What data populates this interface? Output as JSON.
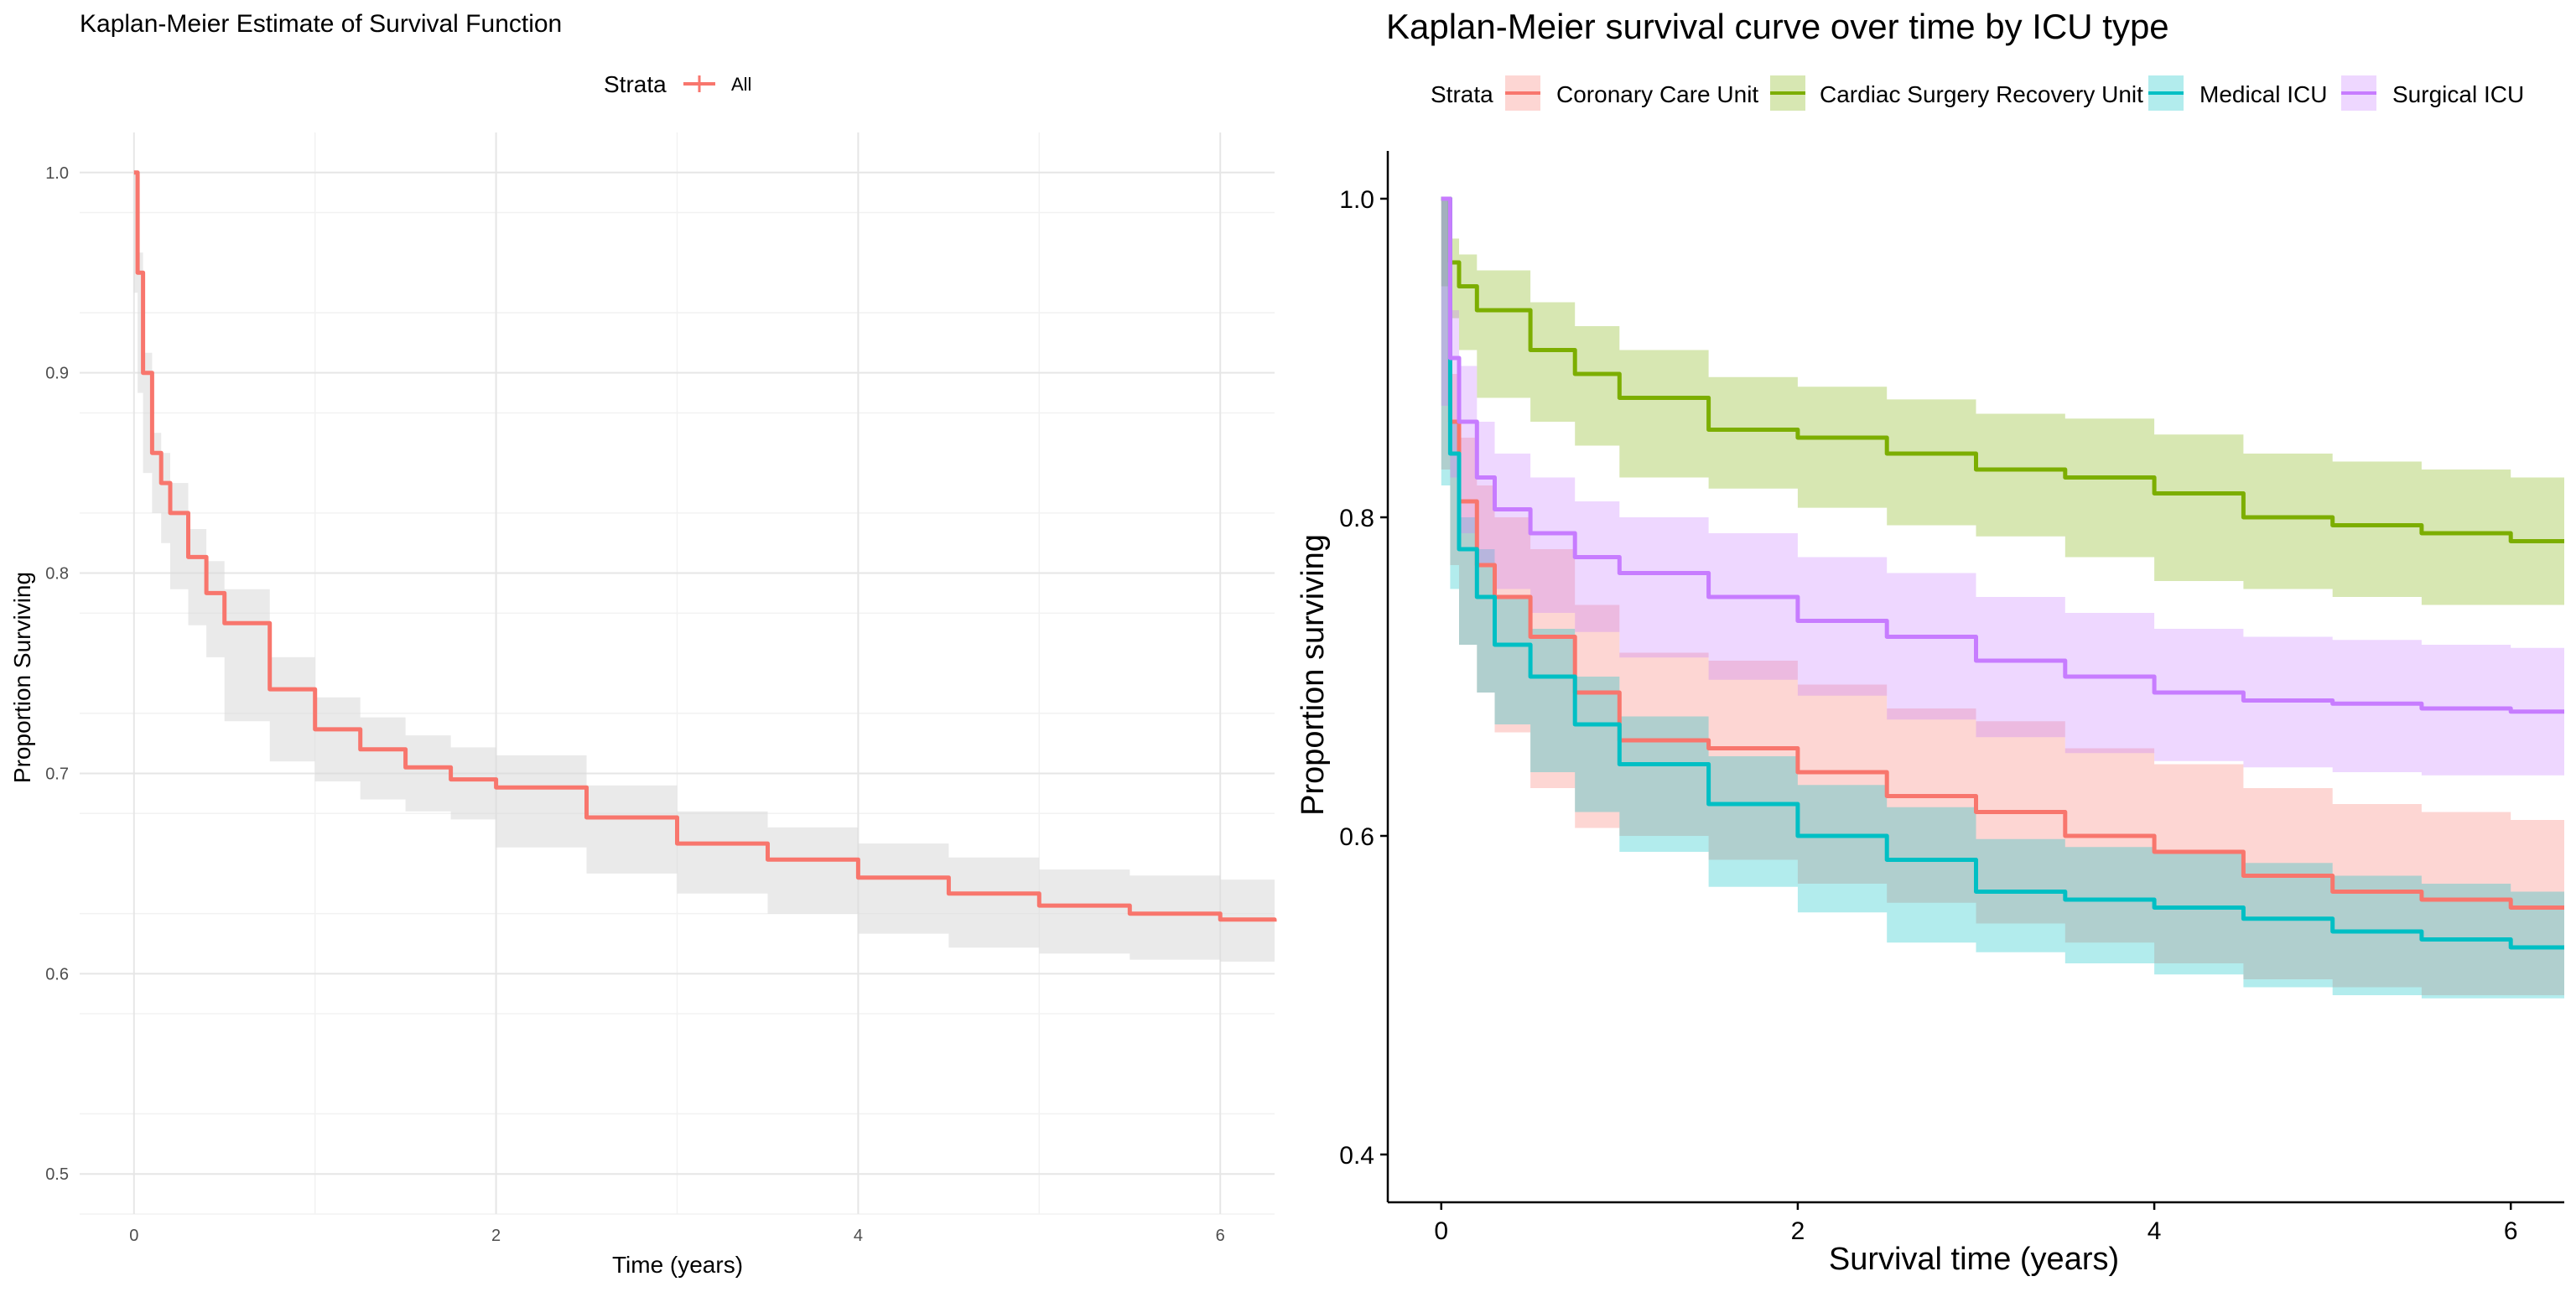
{
  "chart_data": [
    {
      "type": "line",
      "title": "Kaplan-Meier Estimate of Survival Function",
      "xlabel": "Time (years)",
      "ylabel": "Proportion Surviving",
      "xlim": [
        -0.3,
        6.3
      ],
      "ylim": [
        0.48,
        1.02
      ],
      "x_ticks": [
        0,
        2,
        4,
        6
      ],
      "x_tick_labels": [
        "0",
        "2",
        "4",
        "6"
      ],
      "y_ticks": [
        0.5,
        0.6,
        0.7,
        0.8,
        0.9,
        1.0
      ],
      "y_tick_labels": [
        "0.5",
        "0.6",
        "0.7",
        "0.8",
        "0.9",
        "1.0"
      ],
      "grid": true,
      "legend": {
        "title": "Strata",
        "placement": "top"
      },
      "series": [
        {
          "name": "All",
          "color": "#F8766D",
          "band_color": "#d9d9d9",
          "x": [
            0,
            0.02,
            0.05,
            0.1,
            0.15,
            0.2,
            0.3,
            0.4,
            0.5,
            0.75,
            1.0,
            1.25,
            1.5,
            1.75,
            2.0,
            2.5,
            3.0,
            3.5,
            4.0,
            4.5,
            5.0,
            5.5,
            6.0,
            6.3
          ],
          "y": [
            1.0,
            0.95,
            0.9,
            0.86,
            0.845,
            0.83,
            0.808,
            0.79,
            0.775,
            0.742,
            0.722,
            0.712,
            0.703,
            0.697,
            0.693,
            0.678,
            0.665,
            0.657,
            0.648,
            0.64,
            0.634,
            0.63,
            0.627,
            0.626
          ],
          "lower": [
            1.0,
            0.94,
            0.89,
            0.85,
            0.83,
            0.815,
            0.792,
            0.774,
            0.758,
            0.726,
            0.706,
            0.696,
            0.687,
            0.681,
            0.677,
            0.663,
            0.65,
            0.64,
            0.63,
            0.62,
            0.613,
            0.61,
            0.607,
            0.606
          ],
          "upper": [
            1.0,
            0.96,
            0.91,
            0.87,
            0.86,
            0.845,
            0.822,
            0.806,
            0.792,
            0.758,
            0.738,
            0.728,
            0.719,
            0.713,
            0.709,
            0.694,
            0.681,
            0.673,
            0.665,
            0.658,
            0.652,
            0.649,
            0.647,
            0.646
          ]
        }
      ]
    },
    {
      "type": "line",
      "title": "Kaplan-Meier survival curve over time by ICU type",
      "xlabel": "Survival time (years)",
      "ylabel": "Proportion surviving",
      "xlim": [
        -0.3,
        6.3
      ],
      "ylim": [
        0.37,
        1.03
      ],
      "x_ticks": [
        0,
        2,
        4,
        6
      ],
      "x_tick_labels": [
        "0",
        "2",
        "4",
        "6"
      ],
      "y_ticks": [
        0.4,
        0.6,
        0.8,
        1.0
      ],
      "y_tick_labels": [
        "0.4",
        "0.6",
        "0.8",
        "1.0"
      ],
      "grid": false,
      "legend": {
        "title": "Strata",
        "placement": "top"
      },
      "series": [
        {
          "name": "Coronary Care Unit",
          "color": "#F8766D",
          "x": [
            0,
            0.05,
            0.1,
            0.2,
            0.3,
            0.5,
            0.75,
            1.0,
            1.5,
            2.0,
            2.5,
            3.0,
            3.5,
            4.0,
            4.5,
            5.0,
            5.5,
            6.0,
            6.3
          ],
          "y": [
            1.0,
            0.86,
            0.81,
            0.77,
            0.75,
            0.725,
            0.69,
            0.66,
            0.655,
            0.64,
            0.625,
            0.615,
            0.6,
            0.59,
            0.575,
            0.565,
            0.56,
            0.555,
            0.555
          ],
          "lower": [
            1.0,
            0.83,
            0.77,
            0.72,
            0.69,
            0.665,
            0.63,
            0.605,
            0.6,
            0.585,
            0.57,
            0.558,
            0.545,
            0.533,
            0.52,
            0.51,
            0.505,
            0.5,
            0.5
          ],
          "upper": [
            1.0,
            0.89,
            0.85,
            0.82,
            0.8,
            0.78,
            0.745,
            0.715,
            0.71,
            0.695,
            0.68,
            0.672,
            0.655,
            0.645,
            0.63,
            0.62,
            0.615,
            0.61,
            0.61
          ]
        },
        {
          "name": "Cardiac Surgery Recovery Unit",
          "color": "#7CAE00",
          "x": [
            0,
            0.05,
            0.1,
            0.2,
            0.5,
            0.75,
            1.0,
            1.5,
            2.0,
            2.5,
            3.0,
            3.5,
            4.0,
            4.5,
            5.0,
            5.5,
            6.0,
            6.3
          ],
          "y": [
            1.0,
            0.96,
            0.945,
            0.93,
            0.905,
            0.89,
            0.875,
            0.855,
            0.85,
            0.84,
            0.83,
            0.825,
            0.815,
            0.8,
            0.795,
            0.79,
            0.785,
            0.785
          ],
          "lower": [
            1.0,
            0.945,
            0.925,
            0.905,
            0.875,
            0.86,
            0.845,
            0.825,
            0.818,
            0.806,
            0.795,
            0.788,
            0.775,
            0.76,
            0.755,
            0.75,
            0.745,
            0.745
          ],
          "upper": [
            1.0,
            0.975,
            0.965,
            0.955,
            0.935,
            0.92,
            0.905,
            0.888,
            0.882,
            0.874,
            0.865,
            0.862,
            0.852,
            0.84,
            0.835,
            0.83,
            0.825,
            0.825
          ]
        },
        {
          "name": "Medical ICU",
          "color": "#00BFC4",
          "x": [
            0,
            0.05,
            0.1,
            0.2,
            0.3,
            0.5,
            0.75,
            1.0,
            1.5,
            2.0,
            2.5,
            3.0,
            3.5,
            4.0,
            4.5,
            5.0,
            5.5,
            6.0,
            6.3
          ],
          "y": [
            1.0,
            0.84,
            0.78,
            0.75,
            0.72,
            0.7,
            0.67,
            0.645,
            0.62,
            0.6,
            0.585,
            0.565,
            0.56,
            0.555,
            0.548,
            0.54,
            0.535,
            0.53,
            0.53
          ],
          "lower": [
            1.0,
            0.82,
            0.755,
            0.72,
            0.69,
            0.67,
            0.64,
            0.615,
            0.59,
            0.568,
            0.552,
            0.533,
            0.527,
            0.52,
            0.513,
            0.505,
            0.5,
            0.498,
            0.498
          ],
          "upper": [
            1.0,
            0.86,
            0.8,
            0.78,
            0.75,
            0.73,
            0.7,
            0.675,
            0.65,
            0.632,
            0.618,
            0.598,
            0.593,
            0.59,
            0.583,
            0.575,
            0.57,
            0.565,
            0.565
          ]
        },
        {
          "name": "Surgical ICU",
          "color": "#C77CFF",
          "x": [
            0,
            0.05,
            0.1,
            0.2,
            0.3,
            0.5,
            0.75,
            1.0,
            1.5,
            2.0,
            2.5,
            3.0,
            3.5,
            4.0,
            4.5,
            5.0,
            5.5,
            6.0,
            6.3
          ],
          "y": [
            1.0,
            0.9,
            0.86,
            0.825,
            0.805,
            0.79,
            0.775,
            0.765,
            0.75,
            0.735,
            0.725,
            0.71,
            0.7,
            0.69,
            0.685,
            0.683,
            0.68,
            0.678,
            0.678
          ],
          "lower": [
            1.0,
            0.87,
            0.825,
            0.79,
            0.77,
            0.755,
            0.74,
            0.728,
            0.712,
            0.698,
            0.688,
            0.673,
            0.662,
            0.652,
            0.647,
            0.643,
            0.64,
            0.638,
            0.638
          ],
          "upper": [
            1.0,
            0.93,
            0.895,
            0.86,
            0.84,
            0.825,
            0.81,
            0.8,
            0.79,
            0.775,
            0.765,
            0.75,
            0.74,
            0.73,
            0.725,
            0.723,
            0.72,
            0.718,
            0.718
          ]
        }
      ]
    }
  ]
}
